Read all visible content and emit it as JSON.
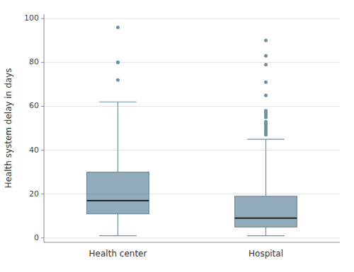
{
  "chart_data": {
    "type": "box",
    "categories": [
      "Health center",
      "Hospital"
    ],
    "ylabel": "Health system delay in days",
    "ylim": [
      -2,
      102
    ],
    "yticks": [
      0,
      20,
      40,
      60,
      80,
      100
    ],
    "grid": true,
    "color": "#6d8fa3",
    "boxes": [
      {
        "q1": 11,
        "median": 17,
        "q3": 30,
        "whisker_low": 1,
        "whisker_high": 62,
        "outliers": [
          72,
          80,
          80,
          96
        ]
      },
      {
        "q1": 5,
        "median": 9,
        "q3": 19,
        "whisker_low": 1,
        "whisker_high": 45,
        "outliers": [
          47,
          48,
          49,
          50,
          51,
          52,
          53,
          55,
          56,
          57,
          58,
          65,
          71,
          79,
          83,
          90
        ]
      }
    ]
  }
}
